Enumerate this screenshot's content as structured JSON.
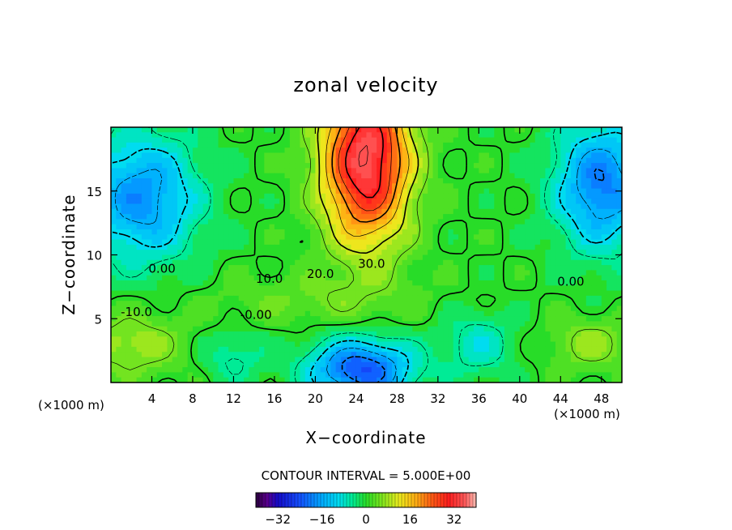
{
  "chart_data": {
    "type": "heatmap",
    "title": "zonal velocity",
    "xlabel": "X−coordinate",
    "ylabel": "Z−coordinate",
    "x_unit_left": "(×1000 m)",
    "x_unit_right": "(×1000 m)",
    "xlim": [
      0,
      50
    ],
    "ylim": [
      0,
      20
    ],
    "xticks": [
      4,
      8,
      12,
      16,
      20,
      24,
      28,
      32,
      36,
      40,
      44,
      48
    ],
    "yticks": [
      5,
      10,
      15
    ],
    "contour_interval_text": "CONTOUR INTERVAL = 5.000E+00",
    "colorbar": {
      "range": [
        -40,
        40
      ],
      "ticks": [
        -32,
        -16,
        0,
        16,
        32
      ],
      "tick_labels": [
        "−32",
        "−16",
        "0",
        "16",
        "32"
      ]
    },
    "contour_labels": [
      {
        "text": "0.00",
        "x": 5,
        "y": 8.6
      },
      {
        "text": "10.0",
        "x": 15.5,
        "y": 7.8
      },
      {
        "text": "20.0",
        "x": 20.5,
        "y": 8.2
      },
      {
        "text": "30.0",
        "x": 25.5,
        "y": 9.0
      },
      {
        "text": "0.00",
        "x": 45,
        "y": 7.6
      },
      {
        "text": "-10.0",
        "x": 2.5,
        "y": 5.2
      },
      {
        "text": "-0.00",
        "x": 14.2,
        "y": 5.0
      }
    ],
    "colors": {
      "blue": "#1a1aff",
      "cyan": "#00ccff",
      "green": "#22dd22",
      "yellow": "#eeee22",
      "red": "#ff2222"
    }
  }
}
